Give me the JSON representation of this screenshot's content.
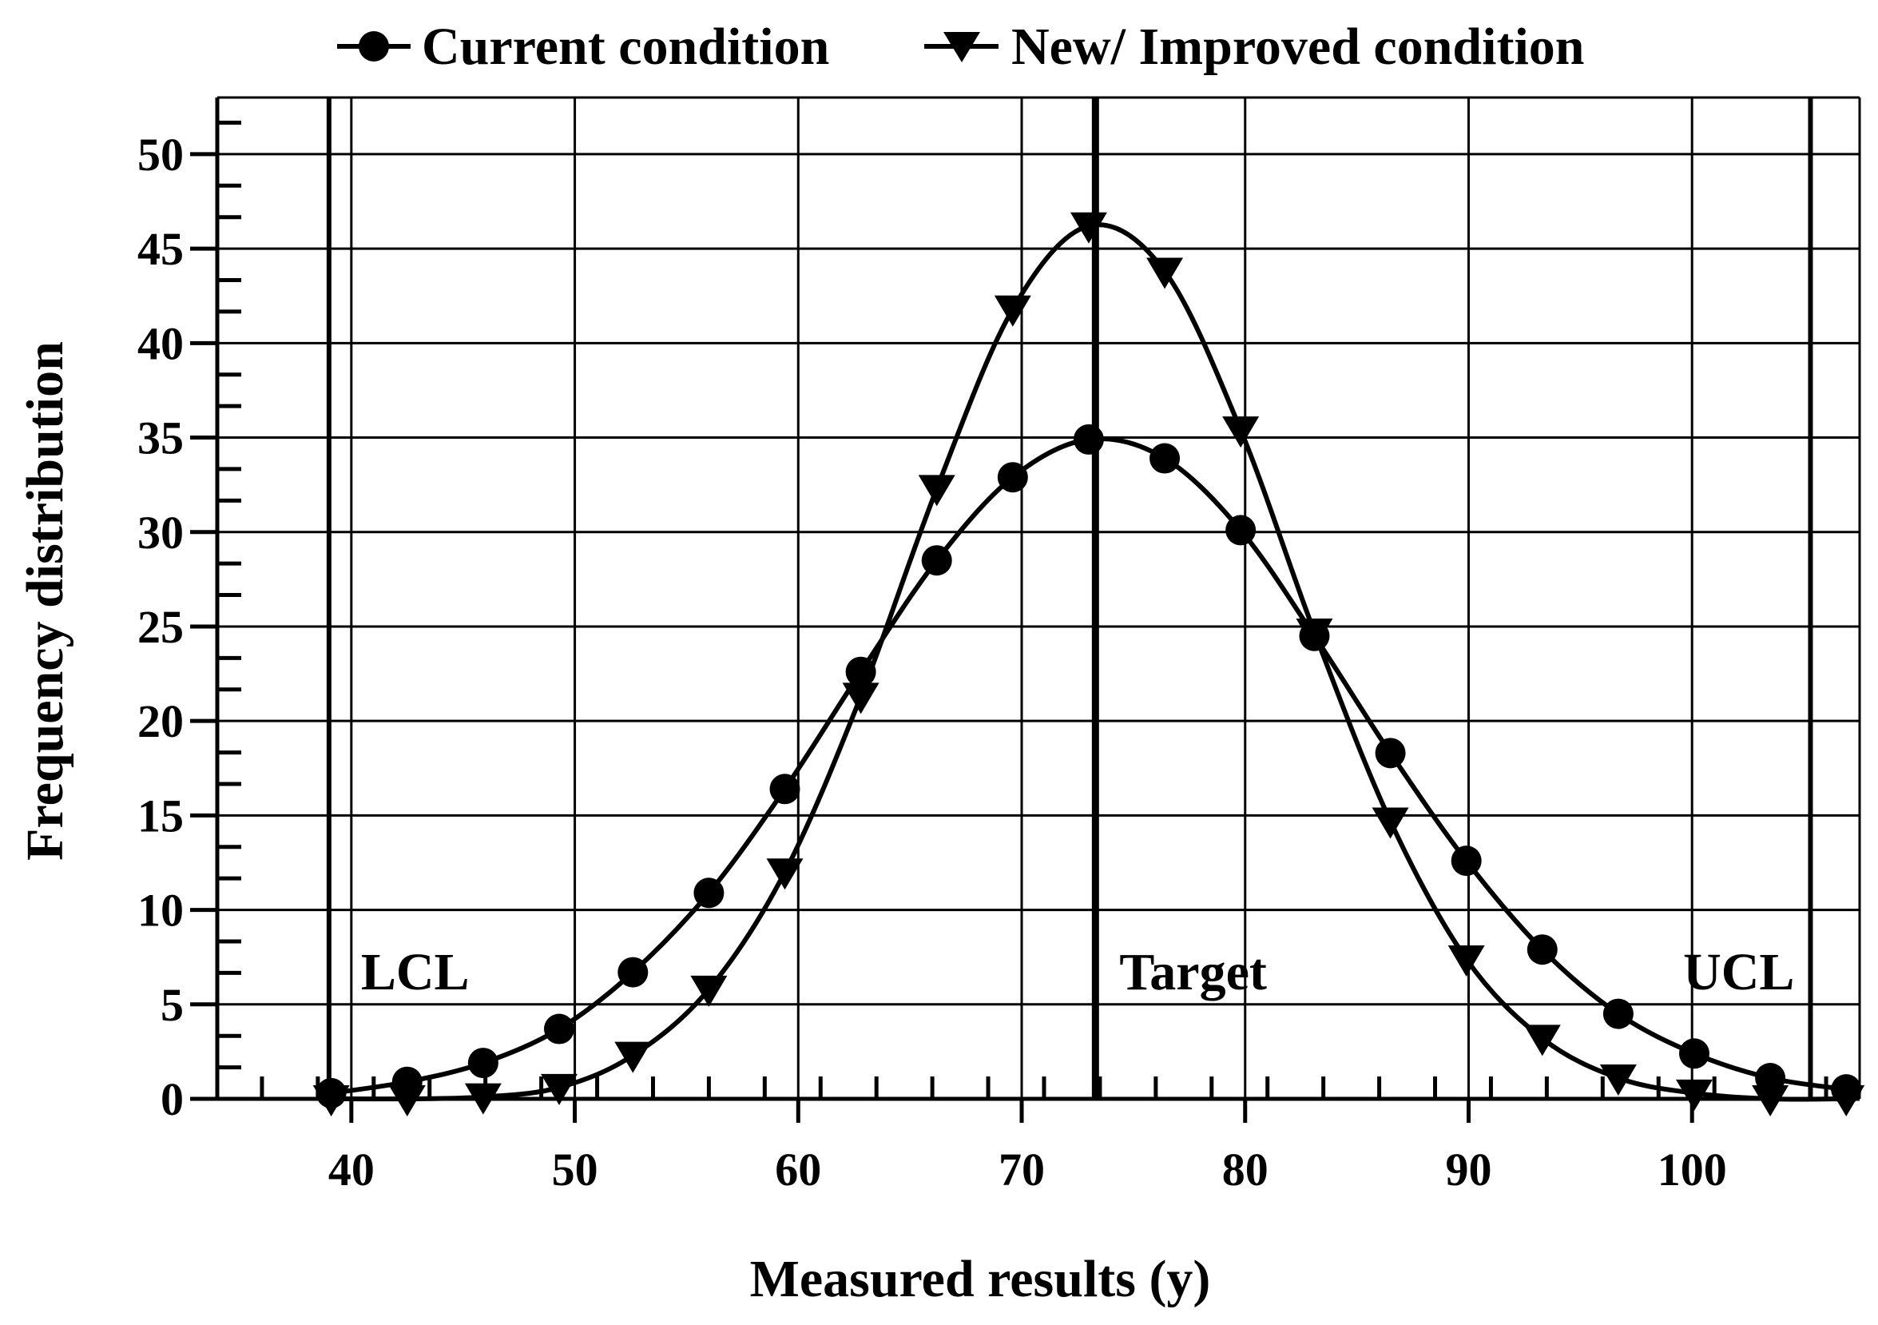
{
  "chart_data": {
    "type": "line",
    "title": "",
    "xlabel": "Measured results (y)",
    "ylabel": "Frequency distribution",
    "xlim": [
      34,
      107.5
    ],
    "ylim": [
      0,
      53
    ],
    "x_ticks": [
      40,
      50,
      60,
      70,
      80,
      90,
      100
    ],
    "y_ticks": [
      0,
      5,
      10,
      15,
      20,
      25,
      30,
      35,
      40,
      45,
      50
    ],
    "grid": true,
    "legend_position": "top",
    "series": [
      {
        "name": "Current condition",
        "marker": "circle",
        "x": [
          39.1,
          42.5,
          45.9,
          49.3,
          52.6,
          56.0,
          59.4,
          62.8,
          66.2,
          69.6,
          73.0,
          76.4,
          79.8,
          83.1,
          86.5,
          89.9,
          93.3,
          96.7,
          100.1,
          103.5,
          106.9
        ],
        "values": [
          0.3,
          0.9,
          1.9,
          3.7,
          6.7,
          10.9,
          16.4,
          22.6,
          28.5,
          32.9,
          34.9,
          33.9,
          30.1,
          24.5,
          18.3,
          12.6,
          7.9,
          4.5,
          2.4,
          1.1,
          0.5
        ]
      },
      {
        "name": "New/ Improved condition",
        "marker": "triangle-down",
        "x": [
          39.1,
          42.5,
          45.9,
          49.3,
          52.6,
          56.0,
          59.4,
          62.8,
          66.2,
          69.6,
          73.0,
          76.4,
          79.8,
          83.1,
          86.5,
          89.9,
          93.3,
          96.7,
          100.1,
          103.5,
          106.9
        ],
        "values": [
          0.0,
          0.0,
          0.1,
          0.6,
          2.3,
          5.8,
          12.0,
          21.3,
          32.3,
          41.8,
          46.2,
          43.8,
          35.4,
          24.7,
          14.7,
          7.4,
          3.2,
          1.1,
          0.3,
          0.0,
          0.0
        ]
      }
    ],
    "reference_lines": [
      {
        "label": "LCL",
        "x": 39.0
      },
      {
        "label": "Target",
        "x": 73.3
      },
      {
        "label": "UCL",
        "x": 105.3
      }
    ]
  },
  "colors": {
    "line": "#000000",
    "background": "#ffffff"
  }
}
